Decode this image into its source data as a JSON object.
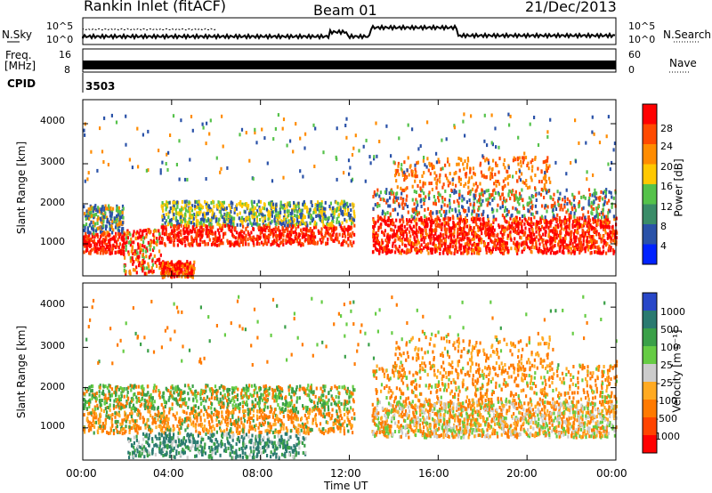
{
  "header": {
    "station": "Rankin Inlet (fitACF)",
    "beam": "Beam 01",
    "date": "21/Dec/2013"
  },
  "top_panels": {
    "nsky_label": "N.Sky",
    "nsearch_label": "N.Search",
    "noise_ticks": [
      "10^5",
      "10^0"
    ],
    "freq_label_1": "Freq.",
    "freq_label_2": "[MHz]",
    "freq_ticks": [
      "16",
      "8"
    ],
    "nave_label": "Nave",
    "nave_ticks": [
      "60",
      "0"
    ],
    "cpid_label": "CPID",
    "cpid_value": "3503"
  },
  "legend_colors": {
    "power": [
      "#0022ff",
      "#2a52a8",
      "#3a8c68",
      "#55c24a",
      "#ffc800",
      "#ff8c00",
      "#ff4a00",
      "#ff0000"
    ],
    "velocity": [
      "#2847c8",
      "#2a7a70",
      "#3aa048",
      "#66cc44",
      "#cccccc",
      "#ffaa22",
      "#ff7a00",
      "#ff4400",
      "#ff0000"
    ]
  },
  "chart_data": [
    {
      "type": "heatmap",
      "title": "Power",
      "ylabel": "Slant Range [km]",
      "ylim": [
        200,
        4600
      ],
      "yticks": [
        "1000",
        "2000",
        "3000",
        "4000"
      ],
      "xlabel": "Time UT",
      "xticks": [
        "00:00",
        "04:00",
        "08:00",
        "12:00",
        "16:00",
        "20:00",
        "00:00"
      ],
      "colorbar": {
        "label": "Power [dB]",
        "ticks": [
          "28",
          "24",
          "20",
          "16",
          "12",
          "8",
          "4"
        ]
      }
    },
    {
      "type": "heatmap",
      "title": "Velocity",
      "ylabel": "Slant Range [km]",
      "ylim": [
        200,
        4600
      ],
      "yticks": [
        "1000",
        "2000",
        "3000",
        "4000"
      ],
      "xlabel": "Time UT",
      "xticks": [
        "00:00",
        "04:00",
        "08:00",
        "12:00",
        "16:00",
        "20:00",
        "00:00"
      ],
      "colorbar": {
        "label": "Velocity [m s⁻¹]",
        "ticks": [
          "1000",
          "500",
          "100",
          "25",
          "-25",
          "-100",
          "-500",
          "-1000"
        ]
      }
    }
  ]
}
